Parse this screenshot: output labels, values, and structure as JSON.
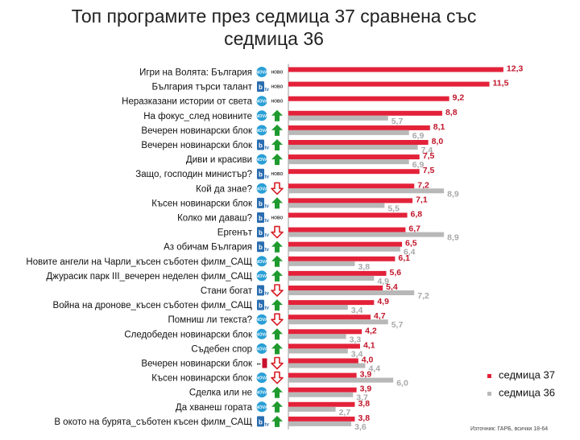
{
  "page": {
    "title": "Топ програмите през седмица 37 сравнена със седмица 36",
    "source": "Източник: ГАРБ, всички 18-64"
  },
  "colors": {
    "week37": "#e3223a",
    "week36": "#b8b8b8",
    "up": "#1f9a2e",
    "down": "#d81f26",
    "nova": "#2a9fd6",
    "btv": "#2a6db0",
    "tv1": "#c8102e"
  },
  "icons": {
    "nova": "nova-logo-icon",
    "btv": "btv-logo-icon",
    "tv1": "tv1-logo-icon",
    "up": "arrow-up-icon",
    "down": "arrow-down-icon"
  },
  "chart_data": {
    "type": "bar",
    "orientation": "horizontal",
    "title": "Топ програмите през седмица 37 сравнена със седмица 36",
    "legend_position": "bottom-right",
    "grid": false,
    "xlim": [
      0,
      13
    ],
    "series": [
      {
        "name": "седмица 37",
        "key": "w37"
      },
      {
        "name": "седмица 36",
        "key": "w36"
      }
    ],
    "rows": [
      {
        "label": "Игри на Волята: България",
        "channel": "nova",
        "status": "НОВО",
        "w37": "12,3",
        "w36": null
      },
      {
        "label": "България търси талант",
        "channel": "btv",
        "status": "НОВО",
        "w37": "11,5",
        "w36": null
      },
      {
        "label": "Неразказани истории от света",
        "channel": "nova",
        "status": "НОВО",
        "w37": "9,2",
        "w36": null
      },
      {
        "label": "На фокус_след новините",
        "channel": "nova",
        "status": "up",
        "w37": "8,8",
        "w36": "5,7"
      },
      {
        "label": "Вечерен новинарски блок",
        "channel": "nova",
        "status": "up",
        "w37": "8,1",
        "w36": "6,9"
      },
      {
        "label": "Вечерен новинарски блок",
        "channel": "btv",
        "status": "up",
        "w37": "8,0",
        "w36": "7,4"
      },
      {
        "label": "Диви и красиви",
        "channel": "nova",
        "status": "up",
        "w37": "7,5",
        "w36": "6,9"
      },
      {
        "label": "Защо, господин министър?",
        "channel": "btv",
        "status": "НОВО",
        "w37": "7,5",
        "w36": null
      },
      {
        "label": "Кой да знае?",
        "channel": "nova",
        "status": "down",
        "w37": "7,2",
        "w36": "8,9"
      },
      {
        "label": "Късен новинарски блок",
        "channel": "btv",
        "status": "up",
        "w37": "7,1",
        "w36": "5,5"
      },
      {
        "label": "Колко ми даваш?",
        "channel": "btv",
        "status": "НОВО",
        "w37": "6,8",
        "w36": null
      },
      {
        "label": "Ергенът",
        "channel": "btv",
        "status": "down",
        "w37": "6,7",
        "w36": "8,9"
      },
      {
        "label": "Аз обичам България",
        "channel": "btv",
        "status": "up",
        "w37": "6,5",
        "w36": "6,4"
      },
      {
        "label": "Новите ангели на Чарли_късен съботен филм_САЩ",
        "channel": "nova",
        "status": "up",
        "w37": "6,1",
        "w36": "3,8"
      },
      {
        "label": "Джурасик парк III_вечерен неделен филм_САЩ",
        "channel": "nova",
        "status": "up",
        "w37": "5,6",
        "w36": "4,9"
      },
      {
        "label": "Стани богат",
        "channel": "btv",
        "status": "down",
        "w37": "5,4",
        "w36": "7,2"
      },
      {
        "label": "Война на дронове_късен съботен филм_САЩ",
        "channel": "btv",
        "status": "up",
        "w37": "4,9",
        "w36": "3,4"
      },
      {
        "label": "Помниш ли текста?",
        "channel": "nova",
        "status": "down",
        "w37": "4,7",
        "w36": "5,7"
      },
      {
        "label": "Следобеден новинарски блок",
        "channel": "nova",
        "status": "up",
        "w37": "4,2",
        "w36": "3,3"
      },
      {
        "label": "Съдебен спор",
        "channel": "nova",
        "status": "up",
        "w37": "4,1",
        "w36": "3,4"
      },
      {
        "label": "Вечерен новинарски блок",
        "channel": "tv1",
        "status": "down",
        "w37": "4,0",
        "w36": "4,4"
      },
      {
        "label": "Късен новинарски блок",
        "channel": "nova",
        "status": "down",
        "w37": "3,9",
        "w36": "6,0"
      },
      {
        "label": "Сделка или не",
        "channel": "nova",
        "status": "up",
        "w37": "3,9",
        "w36": "3,7"
      },
      {
        "label": "Да хванеш гората",
        "channel": "nova",
        "status": "up",
        "w37": "3,8",
        "w36": "2,7"
      },
      {
        "label": "В окото на бурята_съботен късен филм_САЩ",
        "channel": "btv",
        "status": "up",
        "w37": "3,8",
        "w36": "3,6"
      }
    ]
  }
}
